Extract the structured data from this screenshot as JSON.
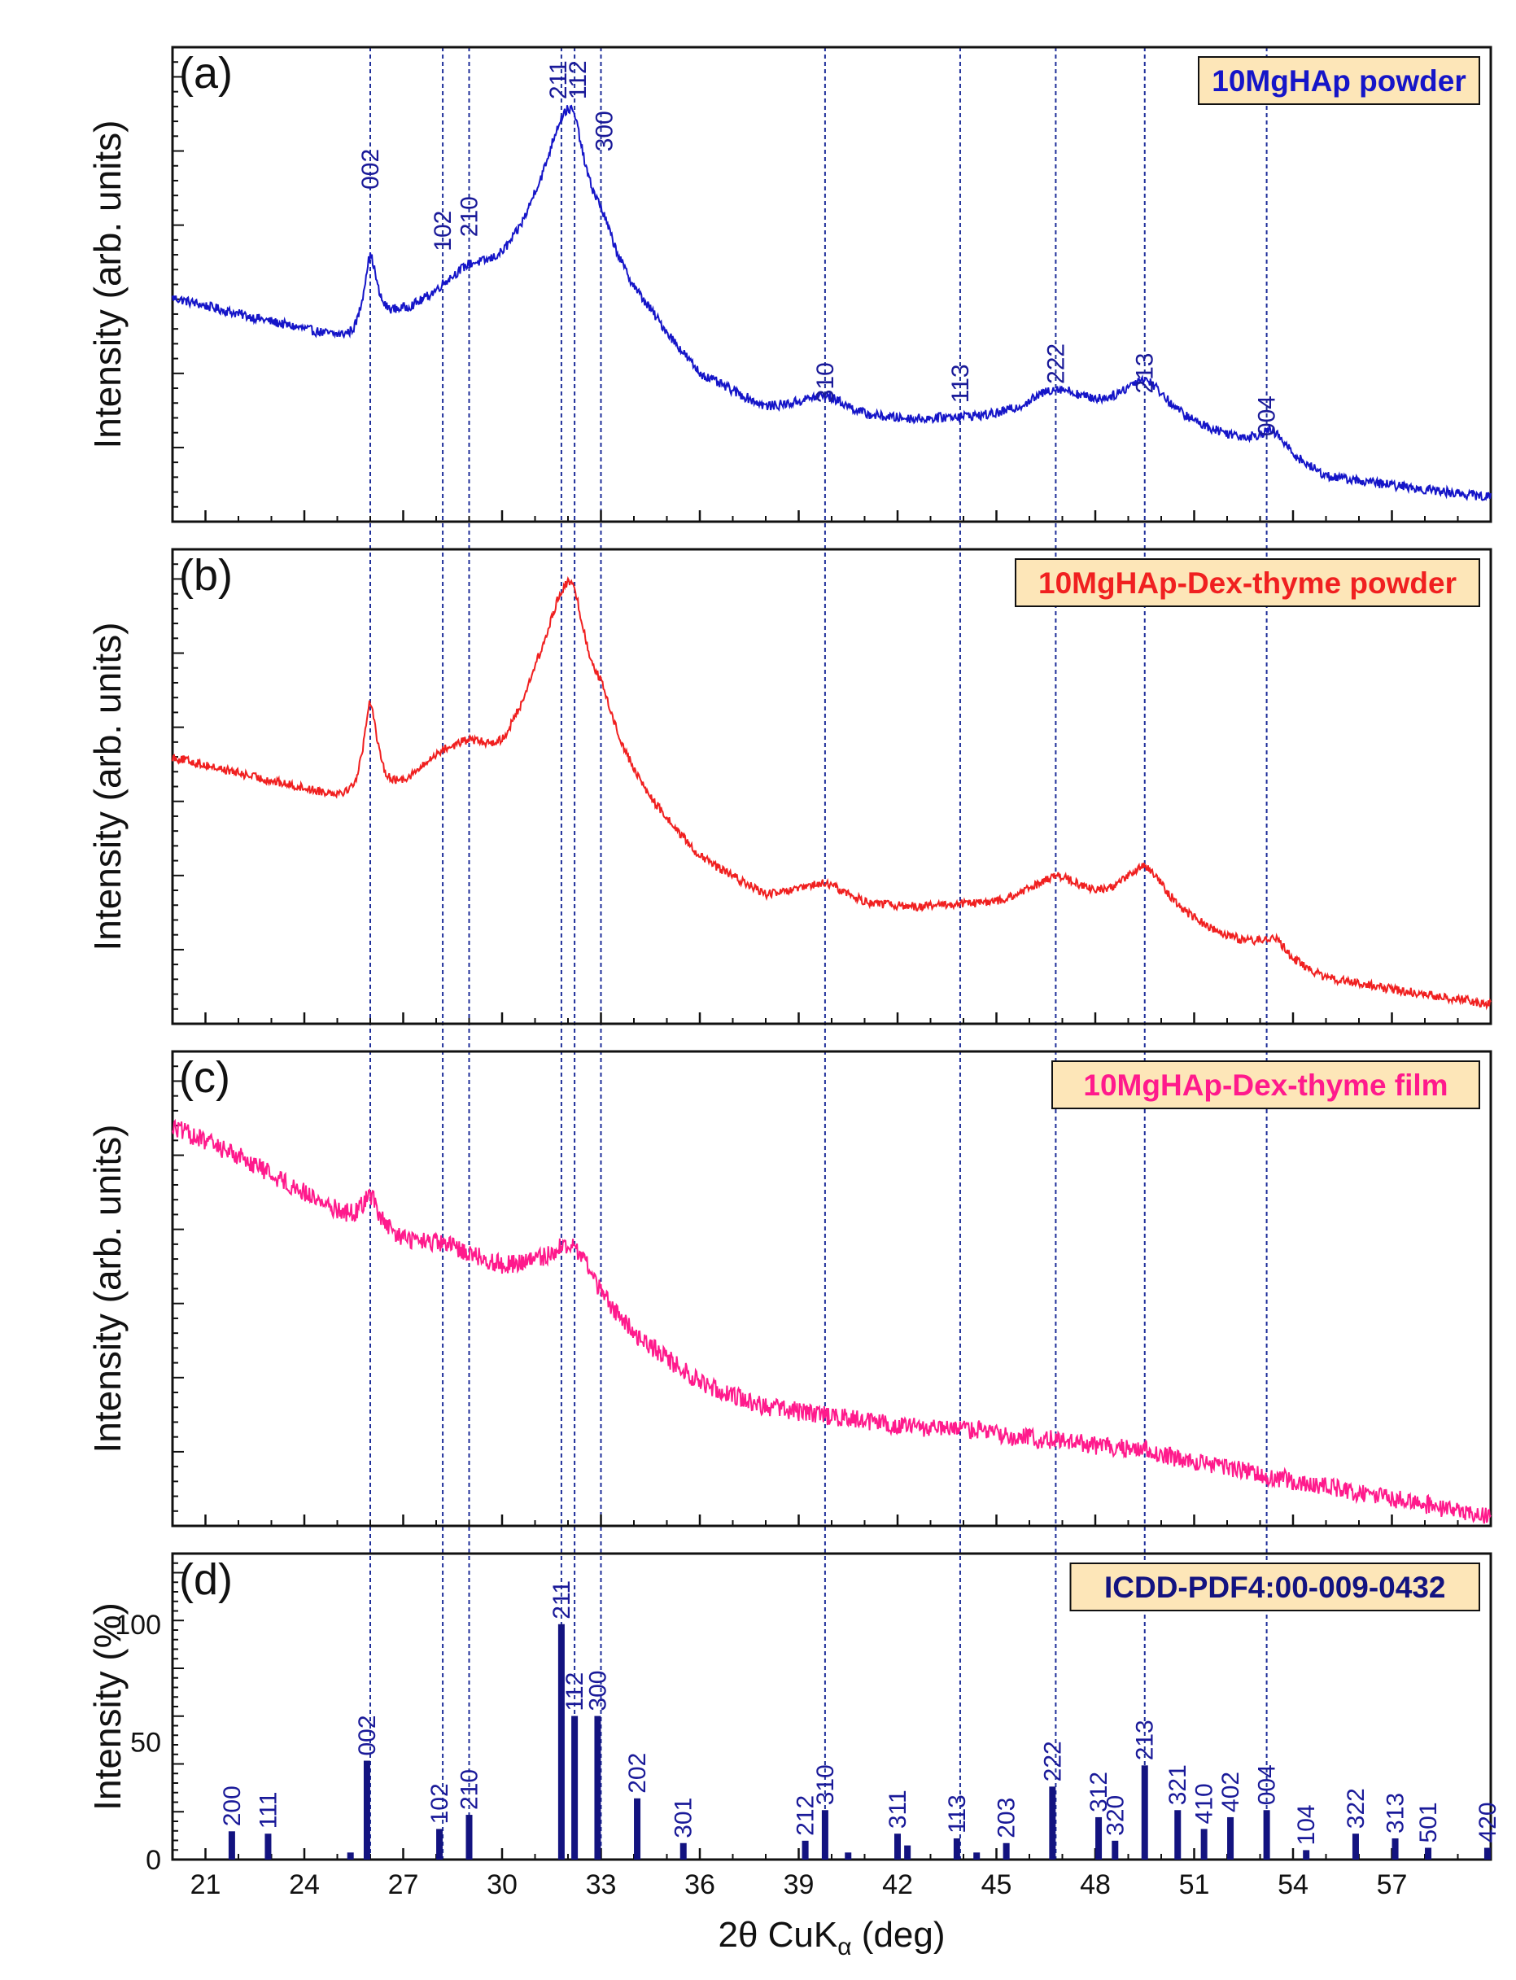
{
  "chart_data": {
    "type": "line",
    "x_axis": {
      "label_main": "2θ CuK",
      "label_sub": "α",
      "label_unit": " (deg)",
      "range": [
        20,
        60
      ],
      "ticks": [
        21,
        24,
        27,
        30,
        33,
        36,
        39,
        42,
        45,
        48,
        51,
        54,
        57
      ],
      "tick_labels": [
        "21",
        "24",
        "27",
        "30",
        "33",
        "36",
        "39",
        "42",
        "45",
        "48",
        "51",
        "54",
        "57"
      ]
    },
    "guide_lines": [
      26.0,
      28.2,
      29.0,
      31.8,
      32.2,
      33.0,
      39.8,
      43.9,
      46.8,
      49.5,
      53.2
    ],
    "colors": {
      "guide": "#1f2f9a",
      "a": "#1515c8",
      "b": "#f02020",
      "c": "#ff1a8c",
      "d": "#131380",
      "legend_bg": "#fde6b8",
      "frame": "#111111"
    },
    "panels": [
      {
        "id": "a",
        "tag": "(a)",
        "ylabel": "Intensity (arb. units)",
        "legend": "10MgHAp powder",
        "series_color_key": "a",
        "y_range": [
          0,
          100
        ],
        "profile": {
          "baseline": [
            [
              20,
              47
            ],
            [
              24,
              40
            ],
            [
              25.5,
              37
            ],
            [
              26.8,
              42
            ],
            [
              28,
              44
            ],
            [
              30,
              52
            ],
            [
              31,
              58
            ],
            [
              33,
              52
            ],
            [
              34.5,
              42
            ],
            [
              36,
              30
            ],
            [
              38,
              23
            ],
            [
              39.8,
              23
            ],
            [
              41,
              21
            ],
            [
              44,
              20
            ],
            [
              46.8,
              21
            ],
            [
              48,
              21
            ],
            [
              49.5,
              21
            ],
            [
              52,
              17
            ],
            [
              53.2,
              15
            ],
            [
              55,
              9
            ],
            [
              60,
              5
            ]
          ],
          "peaks": [
            [
              26.0,
              16,
              0.25
            ],
            [
              28.2,
              3,
              0.8
            ],
            [
              29.0,
              3,
              0.6
            ],
            [
              31.8,
              22,
              0.7
            ],
            [
              32.2,
              12,
              0.4
            ],
            [
              33.0,
              6,
              0.6
            ],
            [
              39.8,
              3,
              1.0
            ],
            [
              43.9,
              1,
              0.8
            ],
            [
              46.8,
              6,
              1.1
            ],
            [
              49.5,
              8,
              0.9
            ],
            [
              53.4,
              4,
              0.5
            ]
          ],
          "noise": 1.0
        },
        "hkl_labels": [
          {
            "text": "002",
            "x": 26.0,
            "y": 70
          },
          {
            "text": "102",
            "x": 28.2,
            "y": 57
          },
          {
            "text": "210",
            "x": 29.0,
            "y": 60
          },
          {
            "text": "211",
            "x": 31.7,
            "y": 89
          },
          {
            "text": "112",
            "x": 32.3,
            "y": 89
          },
          {
            "text": "300",
            "x": 33.1,
            "y": 78
          },
          {
            "text": "310",
            "x": 39.8,
            "y": 25
          },
          {
            "text": "113",
            "x": 43.9,
            "y": 25
          },
          {
            "text": "222",
            "x": 46.8,
            "y": 29
          },
          {
            "text": "213",
            "x": 49.5,
            "y": 27
          },
          {
            "text": "004",
            "x": 53.2,
            "y": 18
          }
        ]
      },
      {
        "id": "b",
        "tag": "(b)",
        "ylabel": "Intensity (arb. units)",
        "legend": "10MgHAp-Dex-thyme powder",
        "series_color_key": "b",
        "y_range": [
          0,
          100
        ],
        "profile": {
          "baseline": [
            [
              20,
              56
            ],
            [
              24,
              49
            ],
            [
              25.5,
              46
            ],
            [
              26.8,
              48
            ],
            [
              28,
              52
            ],
            [
              30,
              55
            ],
            [
              31,
              64
            ],
            [
              33,
              58
            ],
            [
              34.5,
              45
            ],
            [
              36,
              34
            ],
            [
              38,
              26
            ],
            [
              39.8,
              26
            ],
            [
              41,
              24
            ],
            [
              44,
              23
            ],
            [
              46.8,
              24
            ],
            [
              48,
              23
            ],
            [
              49.5,
              23
            ],
            [
              52,
              17
            ],
            [
              53.2,
              14
            ],
            [
              55,
              9
            ],
            [
              60,
              4
            ]
          ],
          "peaks": [
            [
              26.0,
              20,
              0.25
            ],
            [
              28.2,
              3,
              0.8
            ],
            [
              29.0,
              3,
              0.6
            ],
            [
              31.8,
              22,
              0.7
            ],
            [
              32.2,
              12,
              0.4
            ],
            [
              33.0,
              6,
              0.6
            ],
            [
              39.8,
              3,
              1.0
            ],
            [
              43.9,
              1,
              0.8
            ],
            [
              46.8,
              6,
              1.1
            ],
            [
              49.5,
              9,
              0.9
            ],
            [
              53.4,
              4,
              0.5
            ]
          ],
          "noise": 0.9
        }
      },
      {
        "id": "c",
        "tag": "(c)",
        "ylabel": "Intensity (arb. units)",
        "legend": "10MgHAp-Dex-thyme film",
        "series_color_key": "c",
        "y_range": [
          0,
          100
        ],
        "profile": {
          "baseline": [
            [
              20,
              84
            ],
            [
              22,
              78
            ],
            [
              24,
              70
            ],
            [
              25.5,
              64
            ],
            [
              26.8,
              60
            ],
            [
              28,
              58
            ],
            [
              30,
              54
            ],
            [
              31,
              54
            ],
            [
              32.6,
              50
            ],
            [
              34,
              40
            ],
            [
              36,
              30
            ],
            [
              38,
              25
            ],
            [
              40,
              23
            ],
            [
              44,
              19
            ],
            [
              48,
              16
            ],
            [
              52,
              12
            ],
            [
              56,
              7
            ],
            [
              60,
              2
            ]
          ],
          "peaks": [
            [
              26.0,
              7,
              0.3
            ],
            [
              28.5,
              1.5,
              1.0
            ],
            [
              31.9,
              6,
              0.6
            ],
            [
              32.4,
              3,
              0.4
            ],
            [
              44.5,
              1.5,
              0.8
            ],
            [
              47.0,
              1,
              1.0
            ],
            [
              49.5,
              1.5,
              0.8
            ]
          ],
          "noise": 2.0
        }
      },
      {
        "id": "d",
        "tag": "(d)",
        "ylabel": "Intensity (%)",
        "legend": "ICDD-PDF4:00-009-0432",
        "series_color_key": "d",
        "y_range": [
          0,
          130
        ],
        "y_ticks": [
          0,
          50,
          100
        ],
        "y_tick_labels": [
          "0",
          "50",
          "100"
        ],
        "sticks": [
          {
            "x": 21.8,
            "v": 12,
            "label": "200"
          },
          {
            "x": 22.9,
            "v": 11,
            "label": "111"
          },
          {
            "x": 25.4,
            "v": 3,
            "label": ""
          },
          {
            "x": 25.9,
            "v": 42,
            "label": "002"
          },
          {
            "x": 28.1,
            "v": 13,
            "label": "102"
          },
          {
            "x": 29.0,
            "v": 19,
            "label": "210"
          },
          {
            "x": 31.8,
            "v": 100,
            "label": "211"
          },
          {
            "x": 32.2,
            "v": 61,
            "label": "112"
          },
          {
            "x": 32.9,
            "v": 61,
            "label": "300"
          },
          {
            "x": 34.1,
            "v": 26,
            "label": "202"
          },
          {
            "x": 35.5,
            "v": 7,
            "label": "301"
          },
          {
            "x": 39.2,
            "v": 8,
            "label": "212"
          },
          {
            "x": 39.8,
            "v": 21,
            "label": "310"
          },
          {
            "x": 40.5,
            "v": 3,
            "label": ""
          },
          {
            "x": 42.0,
            "v": 11,
            "label": "311"
          },
          {
            "x": 42.3,
            "v": 6,
            "label": ""
          },
          {
            "x": 43.8,
            "v": 9,
            "label": "113"
          },
          {
            "x": 44.4,
            "v": 3,
            "label": ""
          },
          {
            "x": 45.3,
            "v": 7,
            "label": "203"
          },
          {
            "x": 46.7,
            "v": 31,
            "label": "222"
          },
          {
            "x": 48.1,
            "v": 18,
            "label": "312"
          },
          {
            "x": 48.6,
            "v": 8,
            "label": "320"
          },
          {
            "x": 49.5,
            "v": 40,
            "label": "213"
          },
          {
            "x": 50.5,
            "v": 21,
            "label": "321"
          },
          {
            "x": 51.3,
            "v": 13,
            "label": "410"
          },
          {
            "x": 52.1,
            "v": 18,
            "label": "402"
          },
          {
            "x": 53.2,
            "v": 21,
            "label": "004"
          },
          {
            "x": 54.4,
            "v": 4,
            "label": "104"
          },
          {
            "x": 55.9,
            "v": 11,
            "label": "322"
          },
          {
            "x": 57.1,
            "v": 9,
            "label": "313"
          },
          {
            "x": 58.1,
            "v": 5,
            "label": "501"
          },
          {
            "x": 59.9,
            "v": 5,
            "label": "420"
          }
        ]
      }
    ]
  }
}
